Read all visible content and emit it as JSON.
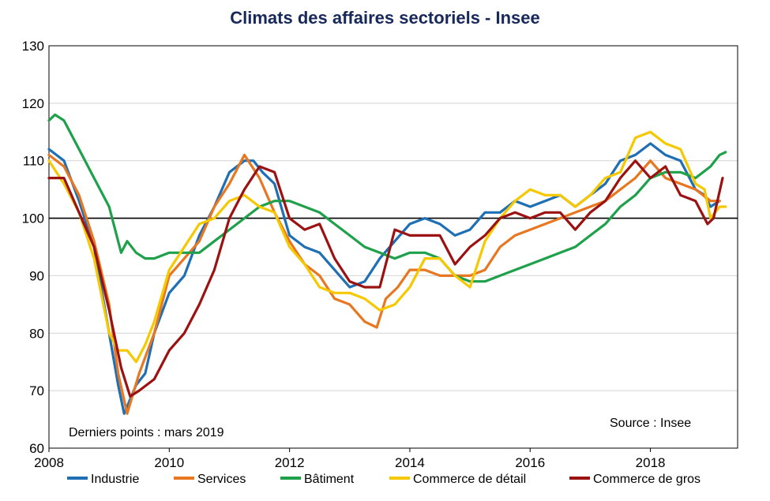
{
  "chart_data": {
    "type": "line",
    "title": "Climats des affaires sectoriels - Insee",
    "xlabel": "",
    "ylabel": "",
    "xlim": [
      2008,
      2019.45
    ],
    "ylim": [
      60,
      130
    ],
    "x_ticks": [
      "2008",
      "2010",
      "2012",
      "2014",
      "2016",
      "2018"
    ],
    "y_ticks": [
      "130",
      "120",
      "110",
      "100",
      "90",
      "80",
      "70",
      "60"
    ],
    "reference_line": 100,
    "grid": "horizontal",
    "legend_position": "bottom",
    "annotations": {
      "source": "Source : Insee",
      "last_points": "Derniers points : mars 2019"
    },
    "series": [
      {
        "name": "Industrie",
        "color": "#1f6fb5",
        "points": [
          [
            2008.0,
            112
          ],
          [
            2008.25,
            110
          ],
          [
            2008.5,
            103
          ],
          [
            2008.75,
            95
          ],
          [
            2009.0,
            80
          ],
          [
            2009.15,
            71
          ],
          [
            2009.25,
            66
          ],
          [
            2009.45,
            71
          ],
          [
            2009.6,
            73
          ],
          [
            2009.75,
            80
          ],
          [
            2010.0,
            87
          ],
          [
            2010.25,
            90
          ],
          [
            2010.5,
            97
          ],
          [
            2010.75,
            102
          ],
          [
            2011.0,
            108
          ],
          [
            2011.25,
            110
          ],
          [
            2011.4,
            110
          ],
          [
            2011.55,
            108
          ],
          [
            2011.75,
            106
          ],
          [
            2012.0,
            97
          ],
          [
            2012.25,
            95
          ],
          [
            2012.5,
            94
          ],
          [
            2012.75,
            91
          ],
          [
            2013.0,
            88
          ],
          [
            2013.25,
            89
          ],
          [
            2013.5,
            93
          ],
          [
            2013.75,
            96
          ],
          [
            2014.0,
            99
          ],
          [
            2014.25,
            100
          ],
          [
            2014.5,
            99
          ],
          [
            2014.75,
            97
          ],
          [
            2015.0,
            98
          ],
          [
            2015.25,
            101
          ],
          [
            2015.5,
            101
          ],
          [
            2015.75,
            103
          ],
          [
            2016.0,
            102
          ],
          [
            2016.25,
            103
          ],
          [
            2016.5,
            104
          ],
          [
            2016.75,
            102
          ],
          [
            2017.0,
            104
          ],
          [
            2017.25,
            106
          ],
          [
            2017.5,
            110
          ],
          [
            2017.75,
            111
          ],
          [
            2018.0,
            113
          ],
          [
            2018.25,
            111
          ],
          [
            2018.5,
            110
          ],
          [
            2018.75,
            105
          ],
          [
            2018.9,
            104
          ],
          [
            2019.0,
            102
          ],
          [
            2019.15,
            103
          ]
        ]
      },
      {
        "name": "Services",
        "color": "#e87722",
        "points": [
          [
            2008.0,
            111
          ],
          [
            2008.25,
            109
          ],
          [
            2008.5,
            104
          ],
          [
            2008.75,
            96
          ],
          [
            2009.0,
            85
          ],
          [
            2009.15,
            73
          ],
          [
            2009.3,
            66
          ],
          [
            2009.5,
            73
          ],
          [
            2009.75,
            80
          ],
          [
            2010.0,
            90
          ],
          [
            2010.25,
            93
          ],
          [
            2010.5,
            96
          ],
          [
            2010.75,
            102
          ],
          [
            2011.0,
            106
          ],
          [
            2011.25,
            111
          ],
          [
            2011.5,
            107
          ],
          [
            2011.75,
            101
          ],
          [
            2012.0,
            96
          ],
          [
            2012.25,
            92
          ],
          [
            2012.5,
            90
          ],
          [
            2012.75,
            86
          ],
          [
            2013.0,
            85
          ],
          [
            2013.25,
            82
          ],
          [
            2013.45,
            81
          ],
          [
            2013.6,
            86
          ],
          [
            2013.8,
            88
          ],
          [
            2014.0,
            91
          ],
          [
            2014.25,
            91
          ],
          [
            2014.5,
            90
          ],
          [
            2014.75,
            90
          ],
          [
            2015.0,
            90
          ],
          [
            2015.25,
            91
          ],
          [
            2015.5,
            95
          ],
          [
            2015.75,
            97
          ],
          [
            2016.0,
            98
          ],
          [
            2016.25,
            99
          ],
          [
            2016.5,
            100
          ],
          [
            2016.75,
            101
          ],
          [
            2017.0,
            102
          ],
          [
            2017.25,
            103
          ],
          [
            2017.5,
            105
          ],
          [
            2017.75,
            107
          ],
          [
            2018.0,
            110
          ],
          [
            2018.25,
            107
          ],
          [
            2018.5,
            106
          ],
          [
            2018.75,
            105
          ],
          [
            2019.0,
            103
          ],
          [
            2019.15,
            103
          ]
        ]
      },
      {
        "name": "Bâtiment",
        "color": "#1fa04a",
        "points": [
          [
            2008.0,
            117
          ],
          [
            2008.1,
            118
          ],
          [
            2008.25,
            117
          ],
          [
            2008.5,
            112
          ],
          [
            2008.75,
            107
          ],
          [
            2009.0,
            102
          ],
          [
            2009.1,
            98
          ],
          [
            2009.2,
            94
          ],
          [
            2009.3,
            96
          ],
          [
            2009.45,
            94
          ],
          [
            2009.6,
            93
          ],
          [
            2009.75,
            93
          ],
          [
            2010.0,
            94
          ],
          [
            2010.25,
            94
          ],
          [
            2010.5,
            94
          ],
          [
            2010.75,
            96
          ],
          [
            2011.0,
            98
          ],
          [
            2011.25,
            100
          ],
          [
            2011.5,
            102
          ],
          [
            2011.75,
            103
          ],
          [
            2012.0,
            103
          ],
          [
            2012.25,
            102
          ],
          [
            2012.5,
            101
          ],
          [
            2012.75,
            99
          ],
          [
            2013.0,
            97
          ],
          [
            2013.25,
            95
          ],
          [
            2013.5,
            94
          ],
          [
            2013.75,
            93
          ],
          [
            2014.0,
            94
          ],
          [
            2014.25,
            94
          ],
          [
            2014.5,
            93
          ],
          [
            2014.75,
            90
          ],
          [
            2015.0,
            89
          ],
          [
            2015.25,
            89
          ],
          [
            2015.5,
            90
          ],
          [
            2015.75,
            91
          ],
          [
            2016.0,
            92
          ],
          [
            2016.25,
            93
          ],
          [
            2016.5,
            94
          ],
          [
            2016.75,
            95
          ],
          [
            2017.0,
            97
          ],
          [
            2017.25,
            99
          ],
          [
            2017.5,
            102
          ],
          [
            2017.75,
            104
          ],
          [
            2018.0,
            107
          ],
          [
            2018.25,
            108
          ],
          [
            2018.5,
            108
          ],
          [
            2018.75,
            107
          ],
          [
            2019.0,
            109
          ],
          [
            2019.15,
            111
          ],
          [
            2019.25,
            111.5
          ]
        ]
      },
      {
        "name": "Commerce de détail",
        "color": "#f5c800",
        "points": [
          [
            2008.0,
            110
          ],
          [
            2008.25,
            106
          ],
          [
            2008.5,
            101
          ],
          [
            2008.75,
            93
          ],
          [
            2009.0,
            80
          ],
          [
            2009.15,
            77
          ],
          [
            2009.3,
            77
          ],
          [
            2009.45,
            75
          ],
          [
            2009.6,
            78
          ],
          [
            2009.75,
            82
          ],
          [
            2010.0,
            91
          ],
          [
            2010.25,
            95
          ],
          [
            2010.5,
            99
          ],
          [
            2010.75,
            100
          ],
          [
            2011.0,
            103
          ],
          [
            2011.25,
            104
          ],
          [
            2011.5,
            102
          ],
          [
            2011.75,
            101
          ],
          [
            2012.0,
            95
          ],
          [
            2012.25,
            92
          ],
          [
            2012.5,
            88
          ],
          [
            2012.75,
            87
          ],
          [
            2013.0,
            87
          ],
          [
            2013.25,
            86
          ],
          [
            2013.5,
            84
          ],
          [
            2013.75,
            85
          ],
          [
            2014.0,
            88
          ],
          [
            2014.25,
            93
          ],
          [
            2014.5,
            93
          ],
          [
            2014.75,
            90
          ],
          [
            2015.0,
            88
          ],
          [
            2015.25,
            96
          ],
          [
            2015.5,
            100
          ],
          [
            2015.75,
            103
          ],
          [
            2016.0,
            105
          ],
          [
            2016.25,
            104
          ],
          [
            2016.5,
            104
          ],
          [
            2016.75,
            102
          ],
          [
            2017.0,
            104
          ],
          [
            2017.25,
            107
          ],
          [
            2017.5,
            108
          ],
          [
            2017.75,
            114
          ],
          [
            2018.0,
            115
          ],
          [
            2018.25,
            113
          ],
          [
            2018.5,
            112
          ],
          [
            2018.75,
            106
          ],
          [
            2018.9,
            105
          ],
          [
            2019.0,
            100
          ],
          [
            2019.15,
            102
          ],
          [
            2019.25,
            102
          ]
        ]
      },
      {
        "name": "Commerce de gros",
        "color": "#9b1212",
        "points": [
          [
            2008.0,
            107
          ],
          [
            2008.25,
            107
          ],
          [
            2008.5,
            101
          ],
          [
            2008.75,
            95
          ],
          [
            2009.0,
            84
          ],
          [
            2009.2,
            74
          ],
          [
            2009.35,
            69
          ],
          [
            2009.5,
            70
          ],
          [
            2009.75,
            72
          ],
          [
            2010.0,
            77
          ],
          [
            2010.25,
            80
          ],
          [
            2010.5,
            85
          ],
          [
            2010.75,
            91
          ],
          [
            2011.0,
            100
          ],
          [
            2011.25,
            105
          ],
          [
            2011.5,
            109
          ],
          [
            2011.75,
            108
          ],
          [
            2012.0,
            100
          ],
          [
            2012.25,
            98
          ],
          [
            2012.5,
            99
          ],
          [
            2012.75,
            93
          ],
          [
            2013.0,
            89
          ],
          [
            2013.25,
            88
          ],
          [
            2013.5,
            88
          ],
          [
            2013.75,
            98
          ],
          [
            2014.0,
            97
          ],
          [
            2014.25,
            97
          ],
          [
            2014.5,
            97
          ],
          [
            2014.75,
            92
          ],
          [
            2015.0,
            95
          ],
          [
            2015.25,
            97
          ],
          [
            2015.5,
            100
          ],
          [
            2015.75,
            101
          ],
          [
            2016.0,
            100
          ],
          [
            2016.25,
            101
          ],
          [
            2016.5,
            101
          ],
          [
            2016.75,
            98
          ],
          [
            2017.0,
            101
          ],
          [
            2017.25,
            103
          ],
          [
            2017.5,
            107
          ],
          [
            2017.75,
            110
          ],
          [
            2018.0,
            107
          ],
          [
            2018.25,
            109
          ],
          [
            2018.5,
            104
          ],
          [
            2018.75,
            103
          ],
          [
            2018.95,
            99
          ],
          [
            2019.05,
            100
          ],
          [
            2019.2,
            107
          ]
        ]
      }
    ]
  }
}
